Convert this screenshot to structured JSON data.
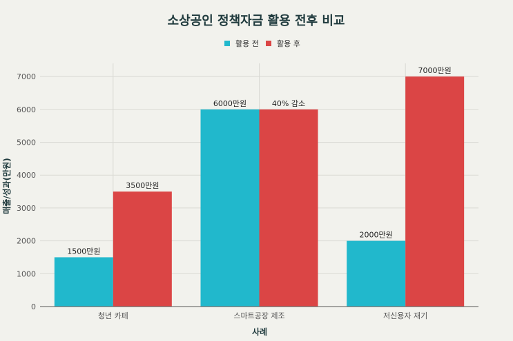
{
  "chart_data": {
    "type": "bar",
    "title": "소상공인 정책자금 활용 전후 비교",
    "xlabel": "사례",
    "ylabel": "매출/성과(만원)",
    "categories": [
      "청년 카페",
      "스마트공장 제조",
      "저신용자 재기"
    ],
    "series": [
      {
        "name": "활용 전",
        "color": "#21b8cc",
        "values": [
          1500,
          6000,
          2000
        ],
        "labels": [
          "1500만원",
          "6000만원",
          "2000만원"
        ]
      },
      {
        "name": "활용 후",
        "color": "#db4545",
        "values": [
          3500,
          6000,
          7000
        ],
        "labels": [
          "3500만원",
          "40% 감소",
          "7000만원"
        ]
      }
    ],
    "ylim": [
      0,
      7400
    ],
    "yticks": [
      0,
      1000,
      2000,
      3000,
      4000,
      5000,
      6000,
      7000
    ],
    "grid": true,
    "legend_position": "top-center"
  }
}
